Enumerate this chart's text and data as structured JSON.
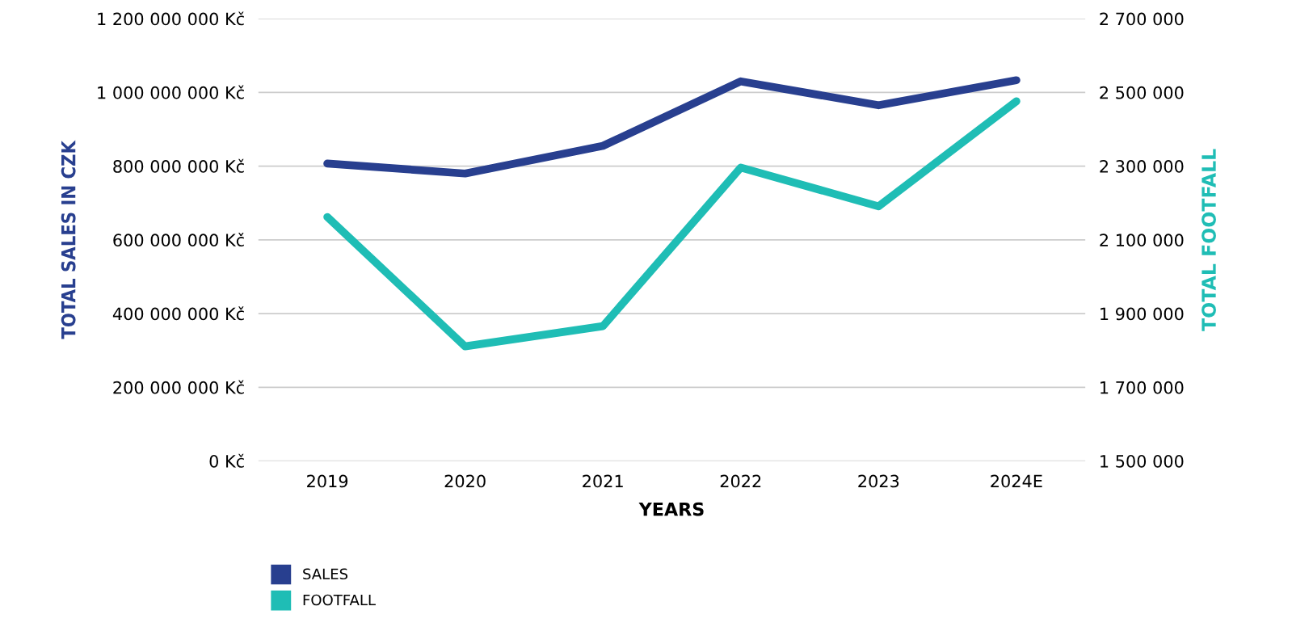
{
  "chart_data": {
    "type": "line",
    "categories": [
      "2019",
      "2020",
      "2021",
      "2022",
      "2023",
      "2024E"
    ],
    "xlabel": "YEARS",
    "ylabel": "TOTAL SALES IN CZK",
    "y2label": "TOTAL FOOTFALL",
    "series": [
      {
        "name": "SALES",
        "color": "#283f8f",
        "values": [
          807000000,
          780000000,
          855000000,
          1030000000,
          965000000,
          1033000000
        ]
      },
      {
        "name": "FOOTFALL",
        "color": "#1fbdb5",
        "axis": "y2",
        "values": [
          2162000,
          1811000,
          1866000,
          2296000,
          2191000,
          2476000
        ]
      }
    ],
    "ylim": [
      0,
      1200000000
    ],
    "yticks": [
      {
        "value": 0,
        "label": "0 Kč"
      },
      {
        "value": 200000000,
        "label": "200 000 000 Kč"
      },
      {
        "value": 400000000,
        "label": "400 000 000 Kč"
      },
      {
        "value": 600000000,
        "label": "600 000 000 Kč"
      },
      {
        "value": 800000000,
        "label": "800 000 000 Kč"
      },
      {
        "value": 1000000000,
        "label": "1 000 000 000 Kč"
      },
      {
        "value": 1200000000,
        "label": "1 200 000 000 Kč"
      }
    ],
    "y2lim": [
      1500000,
      2700000
    ],
    "y2ticks": [
      {
        "value": 1500000,
        "label": "1 500 000"
      },
      {
        "value": 1700000,
        "label": "1 700 000"
      },
      {
        "value": 1900000,
        "label": "1 900 000"
      },
      {
        "value": 2100000,
        "label": "2 100 000"
      },
      {
        "value": 2300000,
        "label": "2 300 000"
      },
      {
        "value": 2500000,
        "label": "2 500 000"
      },
      {
        "value": 2700000,
        "label": "2 700 000"
      }
    ],
    "grid": "y",
    "legend": "bottom left",
    "marker": "none",
    "line_style": "solid"
  }
}
